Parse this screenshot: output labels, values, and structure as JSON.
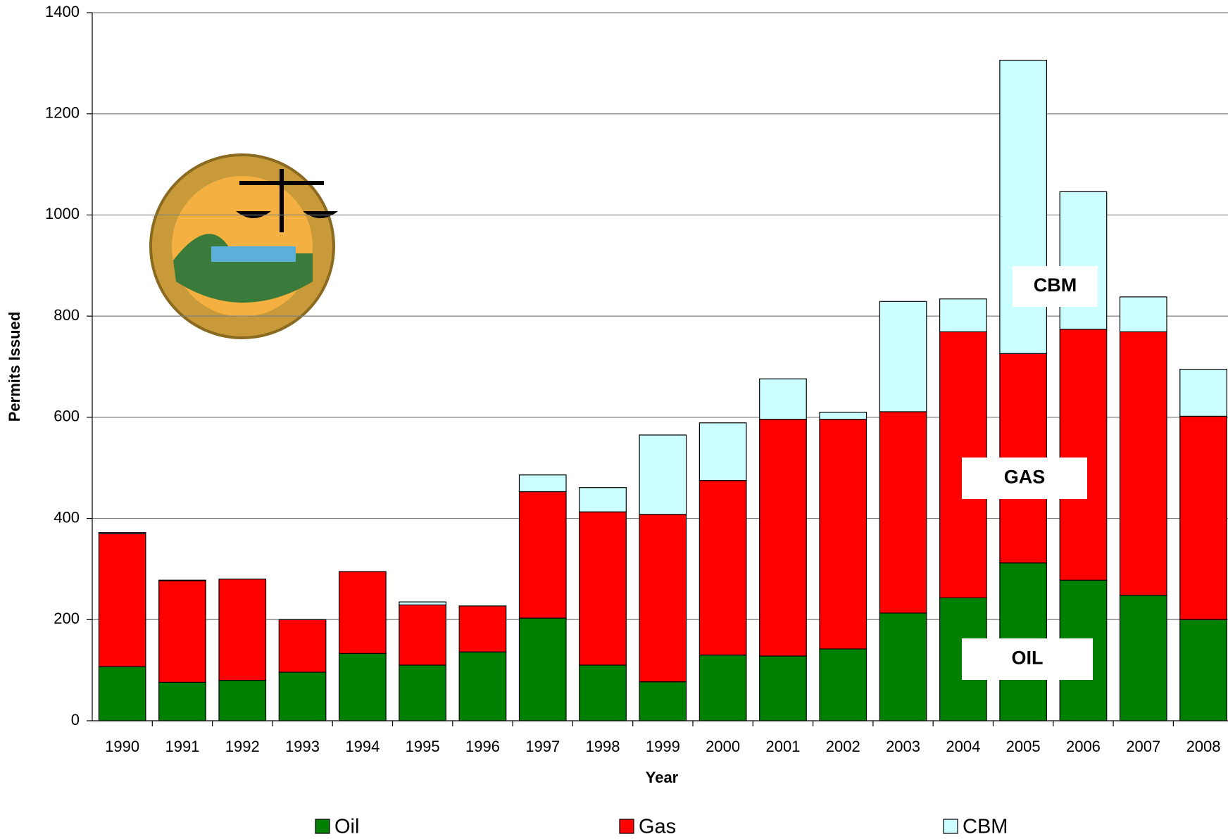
{
  "chart_data": {
    "type": "stacked-bar",
    "x_label": "Year",
    "y_label": "Permits Issued",
    "categories": [
      "1990",
      "1991",
      "1992",
      "1993",
      "1994",
      "1995",
      "1996",
      "1997",
      "1998",
      "1999",
      "2000",
      "2001",
      "2002",
      "2003",
      "2004",
      "2005",
      "2006",
      "2007",
      "2008"
    ],
    "series": [
      {
        "name": "Oil",
        "color": "#008000",
        "values": [
          107,
          76,
          80,
          96,
          133,
          110,
          136,
          203,
          110,
          77,
          130,
          128,
          142,
          213,
          243,
          312,
          278,
          248,
          200
        ]
      },
      {
        "name": "Gas",
        "color": "#ff0000",
        "values": [
          263,
          201,
          200,
          104,
          162,
          119,
          91,
          250,
          303,
          331,
          345,
          468,
          454,
          398,
          526,
          414,
          496,
          521,
          402
        ]
      },
      {
        "name": "CBM",
        "color": "#ccffff",
        "values": [
          2,
          1,
          0,
          0,
          0,
          6,
          0,
          33,
          48,
          157,
          114,
          80,
          14,
          218,
          65,
          580,
          272,
          69,
          93
        ]
      }
    ],
    "ylim": [
      0,
      1400
    ],
    "yticks": [
      0,
      200,
      400,
      600,
      800,
      1000,
      1200,
      1400
    ],
    "grid": true,
    "annotations": [
      "CBM",
      "GAS",
      "OIL"
    ]
  }
}
